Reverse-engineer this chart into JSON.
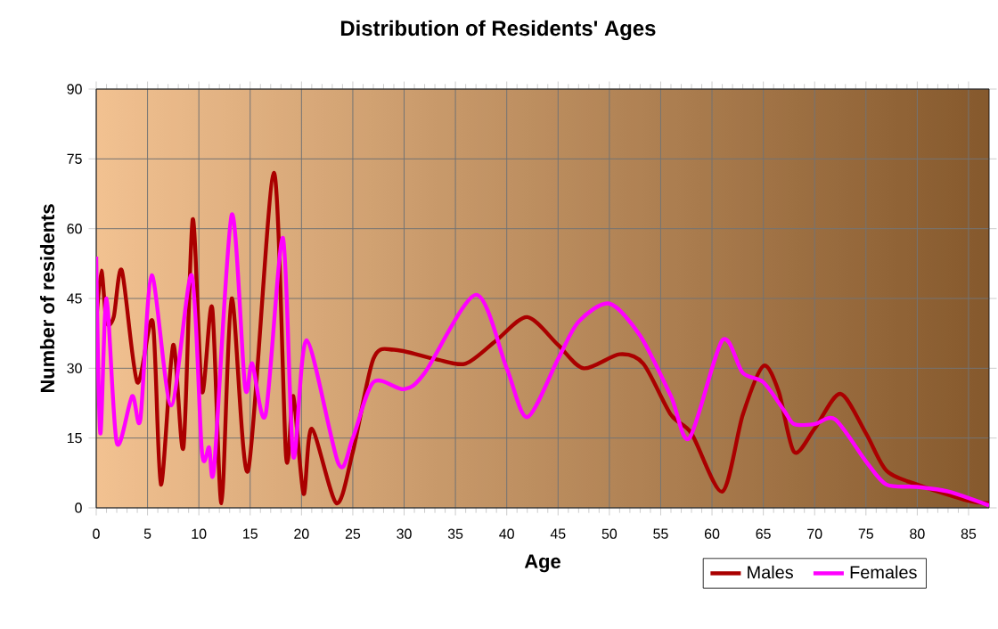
{
  "chart_data": {
    "type": "line",
    "title": "Distribution of Residents' Ages",
    "xlabel": "Age",
    "ylabel": "Number of residents",
    "xlim": [
      0,
      87
    ],
    "xticks": [
      0,
      5,
      10,
      15,
      20,
      25,
      30,
      35,
      40,
      45,
      50,
      55,
      60,
      65,
      70,
      75,
      80,
      85
    ],
    "ylim": [
      0,
      90
    ],
    "yticks": [
      0,
      15,
      30,
      45,
      60,
      75,
      90
    ],
    "grid": true,
    "legend": "bottom right",
    "series": [
      {
        "name": "Males",
        "color": "#aa0000",
        "x": [
          0,
          0.5,
          1,
          1.7,
          2.5,
          4,
          5.5,
          6.3,
          7.5,
          8.5,
          9.4,
          10.3,
          11.3,
          12.2,
          13.2,
          14.8,
          17.3,
          18.5,
          19.2,
          20.2,
          21,
          23.4,
          25,
          27,
          29,
          33,
          36,
          39,
          42,
          45,
          47.5,
          51,
          53.3,
          56,
          58,
          61,
          63,
          65,
          66.5,
          68,
          70,
          72.5,
          75,
          77,
          80,
          85,
          87
        ],
        "values": [
          40,
          51,
          40,
          41,
          51,
          27,
          40,
          5,
          35,
          13,
          62,
          25,
          43,
          1,
          45,
          8,
          72,
          11,
          24,
          3,
          17,
          1,
          12,
          32,
          34,
          32,
          31,
          36,
          41,
          35,
          30,
          33,
          31,
          20,
          16,
          3.5,
          20,
          30.5,
          25,
          12,
          17,
          24.5,
          16,
          8,
          5,
          1.5,
          1
        ]
      },
      {
        "name": "Females",
        "color": "#ff00ff",
        "x": [
          0,
          0.4,
          1,
          2,
          3.5,
          4.3,
          5.4,
          7.3,
          9.3,
          10.3,
          11,
          11.5,
          13.2,
          14.5,
          15.2,
          16.5,
          18.2,
          19.2,
          20.5,
          23.6,
          25,
          27,
          30,
          32,
          37,
          40,
          42,
          45,
          47,
          50,
          53,
          56,
          57.8,
          61,
          63,
          65,
          67,
          68,
          70,
          72,
          75,
          77,
          80,
          83,
          87
        ],
        "values": [
          54,
          16,
          45,
          14,
          24,
          19,
          50,
          22,
          50,
          12,
          13,
          9,
          63,
          26,
          31,
          20,
          58,
          11,
          36,
          9.5,
          15,
          27,
          25.5,
          29,
          45.8,
          30,
          19.5,
          32,
          40,
          43.9,
          37,
          24,
          15,
          36,
          29,
          27,
          21,
          18,
          18,
          19,
          10,
          5,
          4.5,
          3.5,
          0.5
        ]
      }
    ]
  }
}
